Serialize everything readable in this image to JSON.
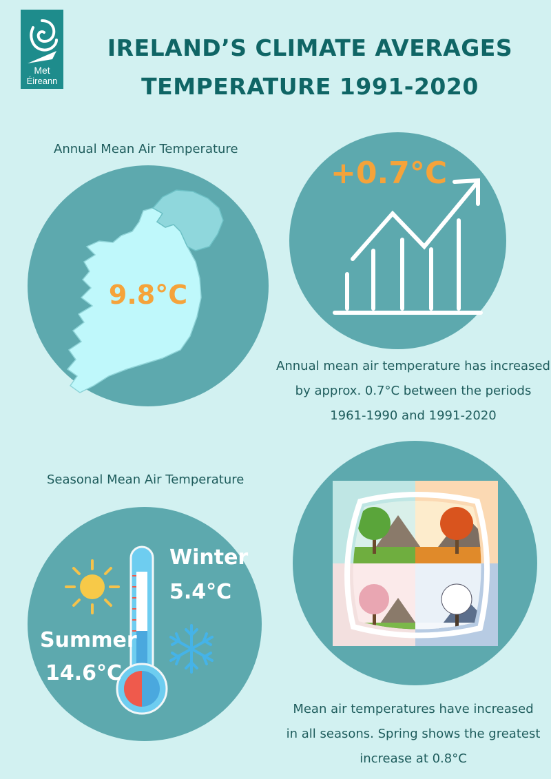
{
  "brand": {
    "logo_line1": "Met",
    "logo_line2": "Éireann"
  },
  "header": {
    "title_line1": "IRELAND’S CLIMATE AVERAGES",
    "title_line2": "TEMPERATURE 1991-2020"
  },
  "annual": {
    "label": "Annual Mean Air Temperature",
    "value": "9.8°C",
    "increase": "+0.7°C",
    "caption": "Annual mean air temperature has increased\nby approx. 0.7°C between the periods\n1961-1990 and 1991-2020"
  },
  "seasonal": {
    "label": "Seasonal Mean Air Temperature",
    "winter_label": "Winter",
    "winter_value": "5.4°C",
    "summer_label": "Summer",
    "summer_value": "14.6°C",
    "caption": "Mean air temperatures have increased\nin all seasons. Spring shows the greatest\nincrease at 0.8°C"
  },
  "colors": {
    "background": "#d2f1f1",
    "title": "#0f6565",
    "circle": "#5da9ae",
    "accent_orange": "#f5a33a",
    "map_fill": "#bff8fb"
  },
  "icons": [
    "met-eireann-logo",
    "ireland-map",
    "bar-chart-arrow-icon",
    "sun-icon",
    "snowflake-icon",
    "thermometer-icon",
    "seasons-trees-image"
  ]
}
